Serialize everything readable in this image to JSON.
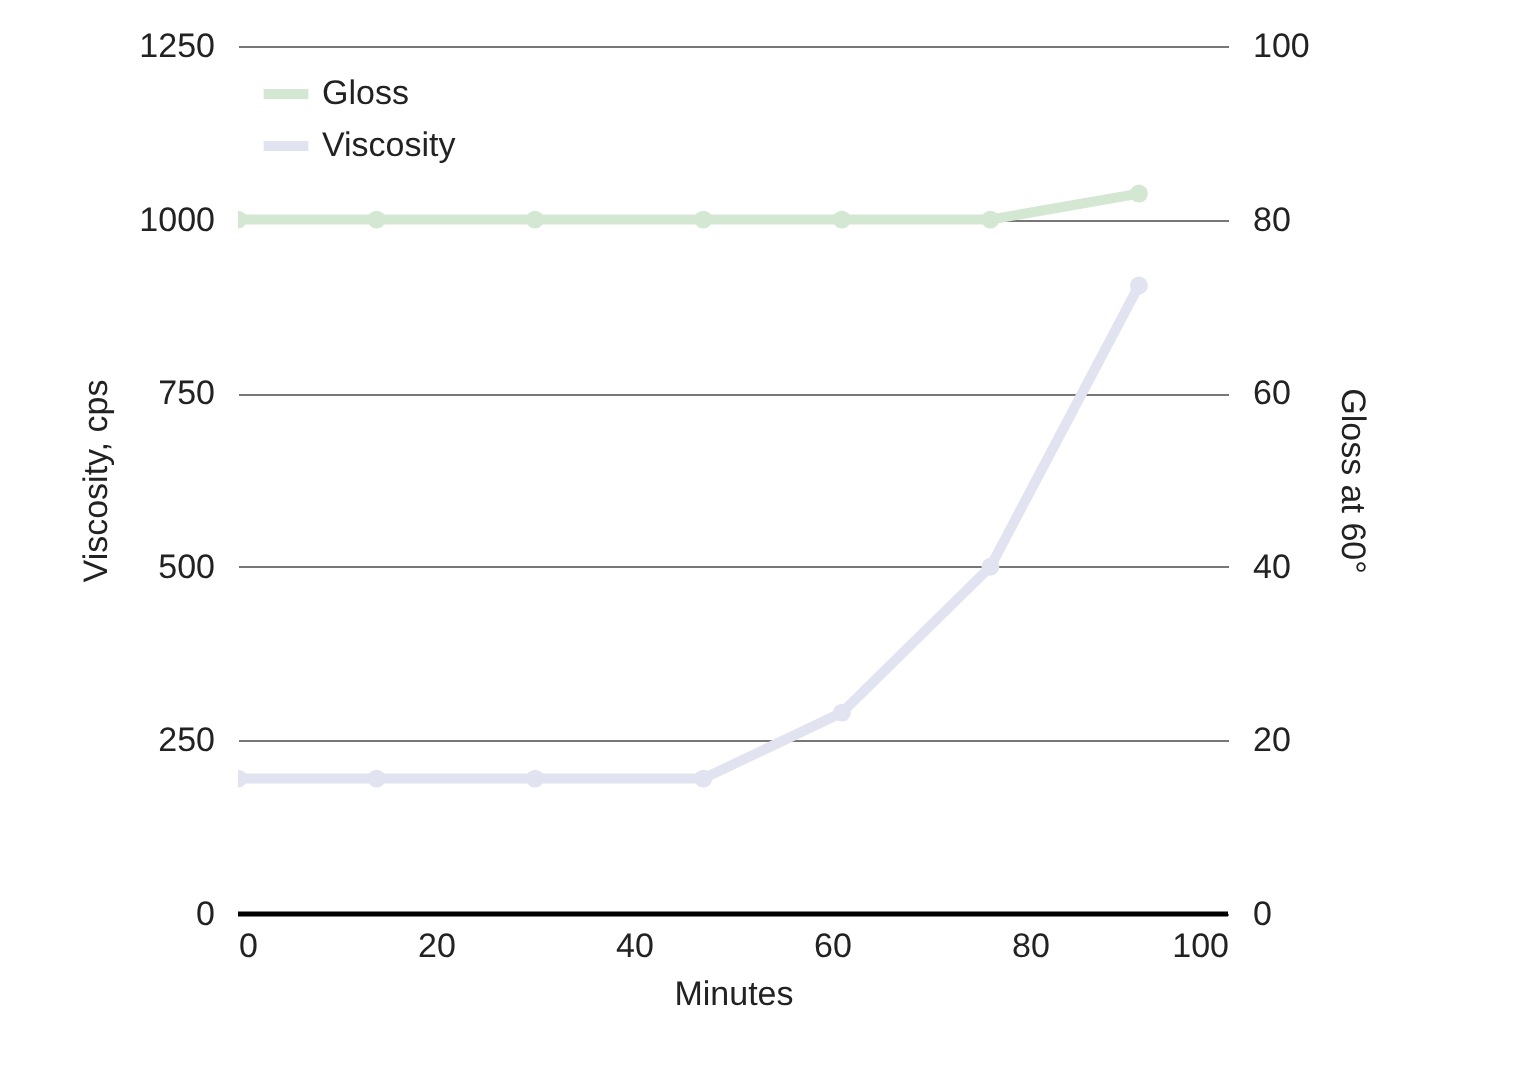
{
  "chart_data": {
    "type": "line",
    "xlabel": "Minutes",
    "ylabel": "Viscosity, cps",
    "y2label": "Gloss at 60°",
    "series": [
      {
        "name": "Gloss",
        "color": "#d3e7d3",
        "axis": "y2",
        "x": [
          0,
          14,
          30,
          47,
          61,
          76,
          91
        ],
        "values": [
          80,
          80,
          80,
          80,
          80,
          80,
          83
        ]
      },
      {
        "name": "Viscosity",
        "color": "#e2e3f0",
        "x": [
          0,
          14,
          30,
          47,
          61,
          76,
          91
        ],
        "values": [
          195,
          195,
          195,
          195,
          290,
          500,
          905
        ]
      }
    ],
    "xlim": [
      0,
      100
    ],
    "xticks": [
      0,
      20,
      40,
      60,
      80,
      100
    ],
    "ylim": [
      0,
      1250
    ],
    "yticks": [
      0,
      250,
      500,
      750,
      1000,
      1250
    ],
    "y2lim": [
      0,
      100
    ],
    "y2ticks": [
      0,
      20,
      40,
      60,
      80,
      100
    ],
    "grid": "y",
    "legend": "top left",
    "marker": "circle",
    "line_style": "solid"
  }
}
